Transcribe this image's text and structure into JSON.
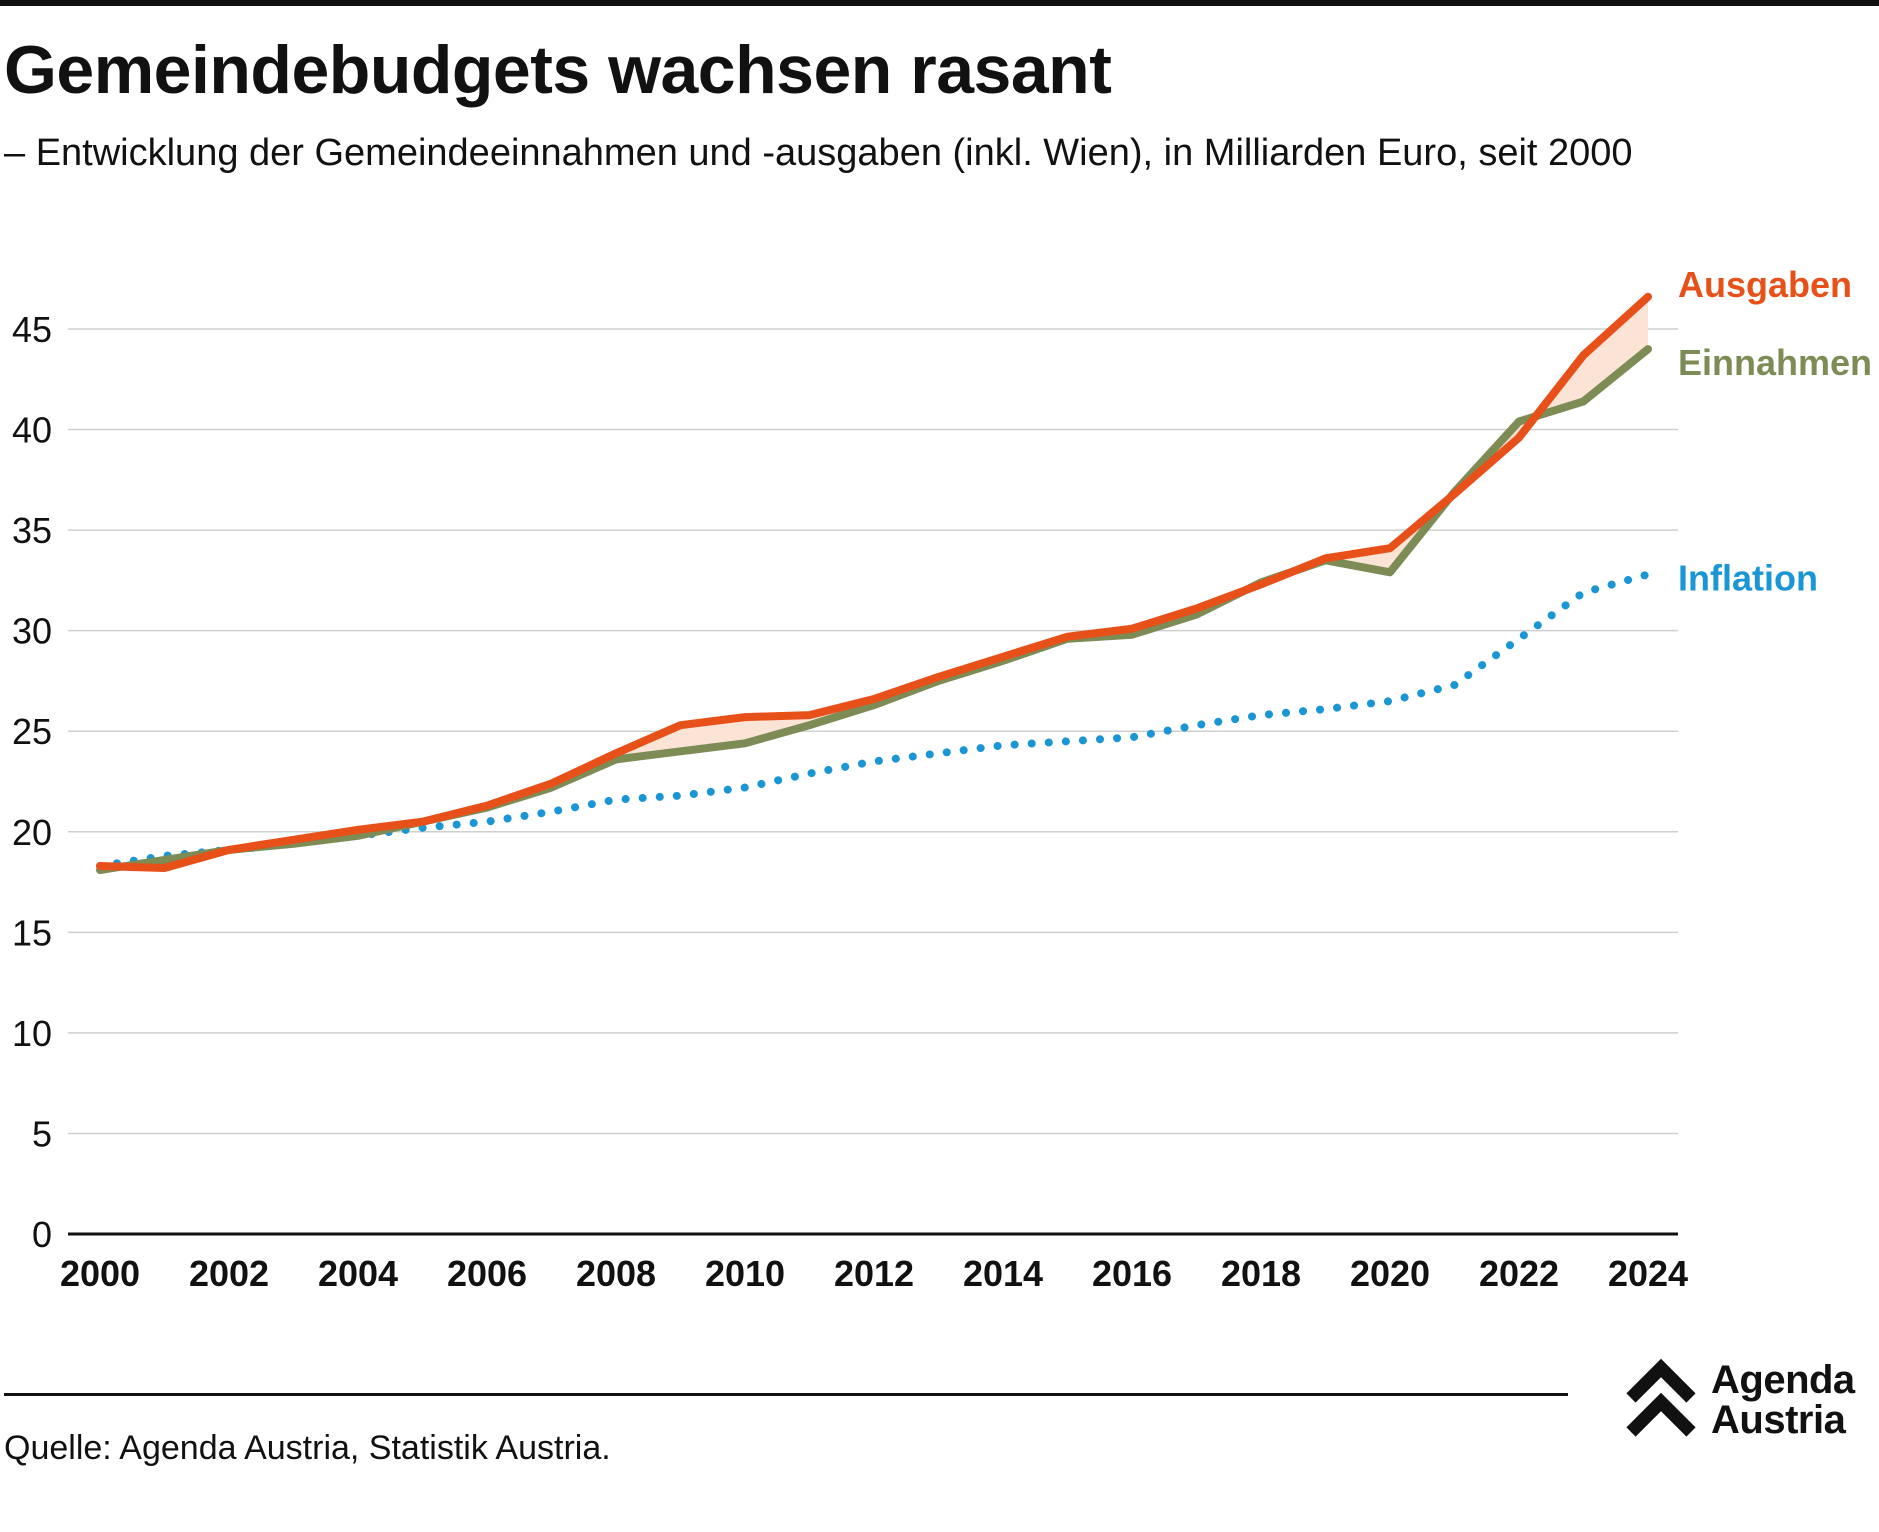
{
  "title": "Gemeindebudgets wachsen rasant",
  "subtitle": "– Entwicklung der Gemeindeeinnahmen und -ausgaben (inkl. Wien), in Milliarden Euro, seit 2000",
  "source": "Quelle: Agenda Austria, Statistik Austria.",
  "logo": {
    "line1": "Agenda",
    "line2": "Austria"
  },
  "chart_data": {
    "type": "line",
    "title": "Gemeindebudgets wachsen rasant",
    "subtitle": "– Entwicklung der Gemeindeeinnahmen und -ausgaben (inkl. Wien), in Milliarden Euro, seit 2000",
    "xlabel": "",
    "ylabel": "",
    "x": [
      2000,
      2001,
      2002,
      2003,
      2004,
      2005,
      2006,
      2007,
      2008,
      2009,
      2010,
      2011,
      2012,
      2013,
      2014,
      2015,
      2016,
      2017,
      2018,
      2019,
      2020,
      2021,
      2022,
      2023,
      2024
    ],
    "xlim": [
      2000,
      2024
    ],
    "ylim": [
      0,
      45
    ],
    "x_ticks": [
      "2000",
      "2002",
      "2004",
      "2006",
      "2008",
      "2010",
      "2012",
      "2014",
      "2016",
      "2018",
      "2020",
      "2022",
      "2024"
    ],
    "y_ticks": [
      "0",
      "5",
      "10",
      "15",
      "20",
      "25",
      "30",
      "35",
      "40",
      "45"
    ],
    "grid": "horizontal",
    "legend": "direct labels at right end of lines",
    "fill_between": {
      "series": [
        "Ausgaben",
        "Einnahmen"
      ],
      "color": "#fbe3d6"
    },
    "series": [
      {
        "name": "Ausgaben",
        "color": "#e8501a",
        "style": "solid",
        "values": [
          18.3,
          18.2,
          19.1,
          19.6,
          20.1,
          20.5,
          21.3,
          22.4,
          23.9,
          25.3,
          25.7,
          25.8,
          26.6,
          27.7,
          28.7,
          29.7,
          30.1,
          31.1,
          32.3,
          33.6,
          34.1,
          36.8,
          39.6,
          43.7,
          46.6
        ]
      },
      {
        "name": "Einnahmen",
        "color": "#7d8b55",
        "style": "solid",
        "values": [
          18.1,
          18.6,
          19.1,
          19.4,
          19.8,
          20.5,
          21.2,
          22.2,
          23.6,
          24.0,
          24.4,
          25.3,
          26.3,
          27.5,
          28.5,
          29.6,
          29.8,
          30.8,
          32.4,
          33.5,
          32.9,
          36.9,
          40.4,
          41.4,
          44.0
        ]
      },
      {
        "name": "Inflation",
        "color": "#1a96d4",
        "style": "dotted",
        "values": [
          18.3,
          18.8,
          19.1,
          19.4,
          19.8,
          20.2,
          20.5,
          21.0,
          21.6,
          21.8,
          22.2,
          22.9,
          23.5,
          23.9,
          24.3,
          24.5,
          24.7,
          25.3,
          25.8,
          26.1,
          26.5,
          27.3,
          29.6,
          31.9,
          32.8
        ]
      }
    ]
  }
}
